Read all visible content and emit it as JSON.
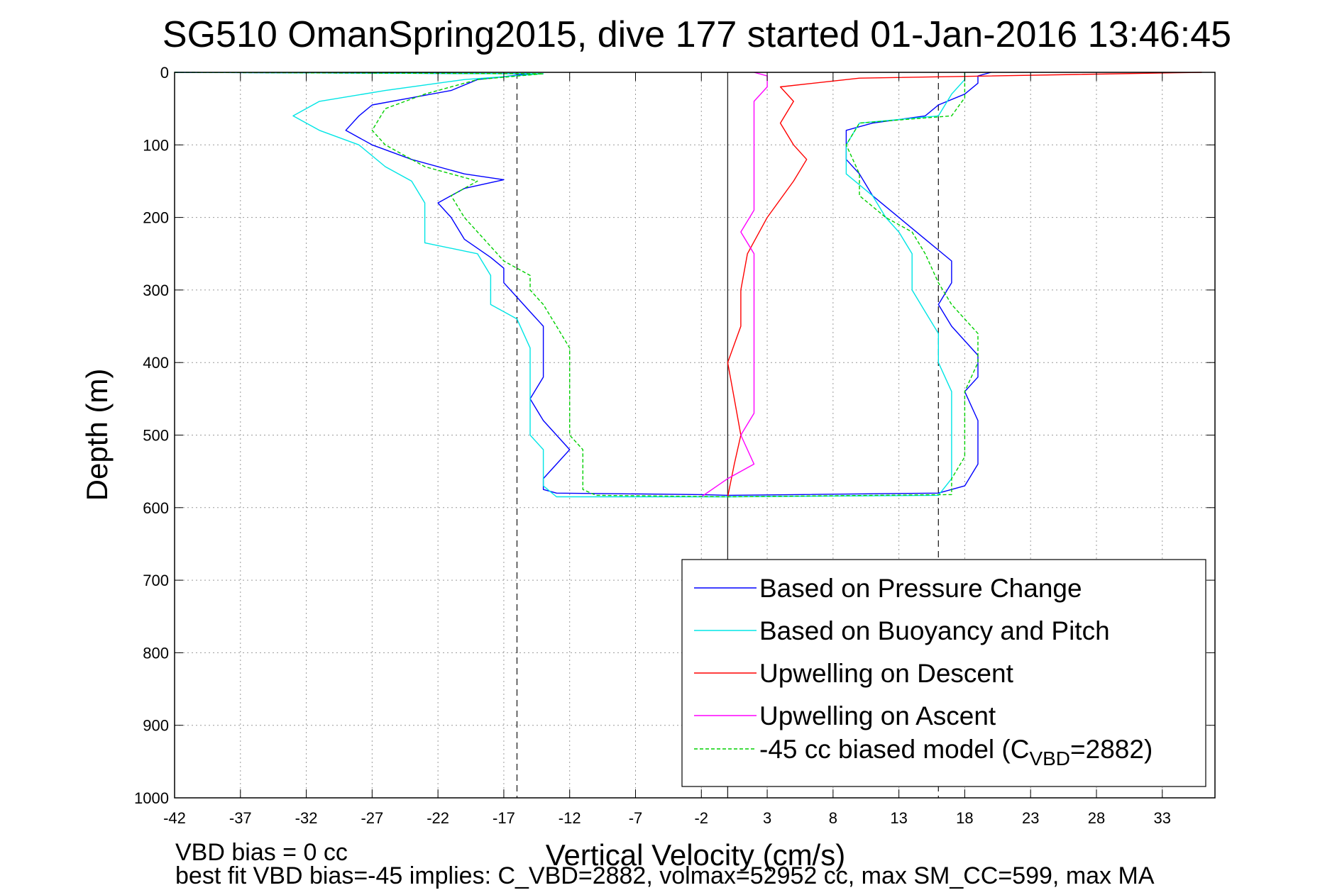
{
  "chart_data": {
    "type": "line",
    "title": "SG510 OmanSpring2015, dive 177 started 01-Jan-2016 13:46:45",
    "xlabel": "Vertical Velocity (cm/s)",
    "ylabel": "Depth (m)",
    "xlim": [
      -42,
      37
    ],
    "ylim": [
      0,
      1000
    ],
    "y_reversed": true,
    "grid": true,
    "xticks": [
      "-42",
      "-37",
      "-32",
      "-27",
      "-22",
      "-17",
      "-12",
      "-7",
      "-2",
      "3",
      "8",
      "13",
      "18",
      "23",
      "28",
      "33"
    ],
    "xtick_values": [
      -42,
      -37,
      -32,
      -27,
      -22,
      -17,
      -12,
      -7,
      -2,
      3,
      8,
      13,
      18,
      23,
      28,
      33
    ],
    "yticks": [
      "0",
      "100",
      "200",
      "300",
      "400",
      "500",
      "600",
      "700",
      "800",
      "900",
      "1000"
    ],
    "ytick_values": [
      0,
      100,
      200,
      300,
      400,
      500,
      600,
      700,
      800,
      900,
      1000
    ],
    "reference_lines": [
      {
        "x": -16,
        "style": "dashed"
      },
      {
        "x": 0,
        "style": "solid"
      },
      {
        "x": 16,
        "style": "dashed"
      }
    ],
    "legend_position": "bottom-right",
    "series": [
      {
        "name": "Based on Pressure Change",
        "color": "#0000ff",
        "style": "solid",
        "points": [
          [
            -42,
            0
          ],
          [
            -15,
            2
          ],
          [
            -19,
            10
          ],
          [
            -21,
            25
          ],
          [
            -24,
            35
          ],
          [
            -27,
            45
          ],
          [
            -28,
            60
          ],
          [
            -29,
            80
          ],
          [
            -27,
            100
          ],
          [
            -24,
            120
          ],
          [
            -20,
            140
          ],
          [
            -17,
            148
          ],
          [
            -20,
            160
          ],
          [
            -22,
            180
          ],
          [
            -21,
            200
          ],
          [
            -20,
            230
          ],
          [
            -18,
            255
          ],
          [
            -17,
            270
          ],
          [
            -17,
            290
          ],
          [
            -16,
            310
          ],
          [
            -15,
            330
          ],
          [
            -14,
            350
          ],
          [
            -14,
            380
          ],
          [
            -14,
            420
          ],
          [
            -15,
            450
          ],
          [
            -14,
            480
          ],
          [
            -13,
            500
          ],
          [
            -12,
            520
          ],
          [
            -13,
            540
          ],
          [
            -14,
            560
          ],
          [
            -14,
            575
          ],
          [
            -13,
            580
          ],
          [
            -2,
            582
          ],
          [
            0,
            583
          ],
          [
            16,
            580
          ],
          [
            18,
            570
          ],
          [
            19,
            540
          ],
          [
            19,
            510
          ],
          [
            19,
            480
          ],
          [
            18,
            440
          ],
          [
            19,
            420
          ],
          [
            19,
            390
          ],
          [
            17,
            350
          ],
          [
            16,
            320
          ],
          [
            17,
            290
          ],
          [
            17,
            260
          ],
          [
            15,
            230
          ],
          [
            13,
            200
          ],
          [
            11,
            170
          ],
          [
            10,
            140
          ],
          [
            9,
            120
          ],
          [
            9,
            100
          ],
          [
            9,
            80
          ],
          [
            11,
            70
          ],
          [
            15,
            60
          ],
          [
            16,
            45
          ],
          [
            18,
            30
          ],
          [
            19,
            15
          ],
          [
            19,
            5
          ],
          [
            20,
            0
          ]
        ]
      },
      {
        "name": "Based on Buoyancy and Pitch",
        "color": "#00e5e5",
        "style": "solid",
        "points": [
          [
            -42,
            0
          ],
          [
            -14,
            2
          ],
          [
            -20,
            10
          ],
          [
            -26,
            25
          ],
          [
            -31,
            40
          ],
          [
            -33,
            60
          ],
          [
            -31,
            80
          ],
          [
            -28,
            100
          ],
          [
            -26,
            130
          ],
          [
            -24,
            150
          ],
          [
            -23,
            180
          ],
          [
            -23,
            210
          ],
          [
            -23,
            235
          ],
          [
            -19,
            250
          ],
          [
            -18,
            280
          ],
          [
            -18,
            320
          ],
          [
            -16,
            340
          ],
          [
            -15,
            380
          ],
          [
            -15,
            420
          ],
          [
            -15,
            460
          ],
          [
            -15,
            500
          ],
          [
            -14,
            520
          ],
          [
            -14,
            550
          ],
          [
            -14,
            570
          ],
          [
            -13,
            585
          ],
          [
            0,
            585
          ],
          [
            16,
            583
          ],
          [
            17,
            560
          ],
          [
            17,
            520
          ],
          [
            17,
            480
          ],
          [
            17,
            440
          ],
          [
            16,
            400
          ],
          [
            16,
            360
          ],
          [
            15,
            330
          ],
          [
            14,
            300
          ],
          [
            14,
            280
          ],
          [
            14,
            250
          ],
          [
            13,
            220
          ],
          [
            12,
            200
          ],
          [
            11,
            170
          ],
          [
            9,
            140
          ],
          [
            9,
            100
          ],
          [
            10,
            70
          ],
          [
            16,
            60
          ],
          [
            17,
            30
          ],
          [
            18,
            10
          ],
          [
            18,
            0
          ]
        ]
      },
      {
        "name": "Upwelling on Descent",
        "color": "#ff0000",
        "style": "solid",
        "points": [
          [
            0,
            585
          ],
          [
            0.5,
            540
          ],
          [
            1,
            500
          ],
          [
            0.5,
            450
          ],
          [
            0,
            400
          ],
          [
            1,
            350
          ],
          [
            1,
            300
          ],
          [
            1.5,
            250
          ],
          [
            3,
            200
          ],
          [
            5,
            150
          ],
          [
            6,
            120
          ],
          [
            5,
            100
          ],
          [
            4,
            70
          ],
          [
            5,
            40
          ],
          [
            4,
            20
          ],
          [
            10,
            8
          ],
          [
            36,
            0
          ]
        ]
      },
      {
        "name": "Upwelling on Ascent",
        "color": "#ff00ff",
        "style": "solid",
        "points": [
          [
            -2,
            585
          ],
          [
            0,
            560
          ],
          [
            2,
            540
          ],
          [
            1,
            500
          ],
          [
            2,
            470
          ],
          [
            2,
            440
          ],
          [
            2,
            400
          ],
          [
            2,
            360
          ],
          [
            2,
            320
          ],
          [
            2,
            280
          ],
          [
            2,
            250
          ],
          [
            1,
            220
          ],
          [
            2,
            190
          ],
          [
            2,
            160
          ],
          [
            2,
            130
          ],
          [
            2,
            100
          ],
          [
            2,
            70
          ],
          [
            2,
            40
          ],
          [
            3,
            20
          ],
          [
            3,
            5
          ],
          [
            2,
            0
          ]
        ]
      },
      {
        "name": "-45 cc biased model (C",
        "color": "#00d000",
        "style": "dashed",
        "points": [
          [
            -42,
            0
          ],
          [
            -14,
            2
          ],
          [
            -19,
            10
          ],
          [
            -23,
            30
          ],
          [
            -26,
            50
          ],
          [
            -27,
            80
          ],
          [
            -26,
            100
          ],
          [
            -23,
            130
          ],
          [
            -19,
            150
          ],
          [
            -21,
            170
          ],
          [
            -20,
            200
          ],
          [
            -18,
            240
          ],
          [
            -17,
            260
          ],
          [
            -15,
            280
          ],
          [
            -15,
            300
          ],
          [
            -14,
            320
          ],
          [
            -13,
            350
          ],
          [
            -12,
            380
          ],
          [
            -12,
            400
          ],
          [
            -12,
            420
          ],
          [
            -12,
            460
          ],
          [
            -12,
            500
          ],
          [
            -11,
            520
          ],
          [
            -11,
            550
          ],
          [
            -11,
            575
          ],
          [
            -10,
            583
          ],
          [
            0,
            585
          ],
          [
            17,
            582
          ],
          [
            17,
            560
          ],
          [
            18,
            530
          ],
          [
            18,
            500
          ],
          [
            18,
            470
          ],
          [
            18,
            440
          ],
          [
            19,
            400
          ],
          [
            19,
            360
          ],
          [
            17,
            320
          ],
          [
            16,
            290
          ],
          [
            15,
            250
          ],
          [
            14,
            220
          ],
          [
            12,
            200
          ],
          [
            10,
            170
          ],
          [
            10,
            140
          ],
          [
            9,
            100
          ],
          [
            10,
            70
          ],
          [
            17,
            60
          ],
          [
            18,
            35
          ],
          [
            18,
            10
          ],
          [
            18,
            0
          ]
        ]
      }
    ],
    "legend_sub": "VBD",
    "legend_tail": "=2882)"
  },
  "footer": {
    "line1": "VBD bias = 0 cc",
    "line2": "best fit VBD bias=-45 implies: C_VBD=2882, volmax=52952 cc, max SM_CC=599, max MA"
  }
}
